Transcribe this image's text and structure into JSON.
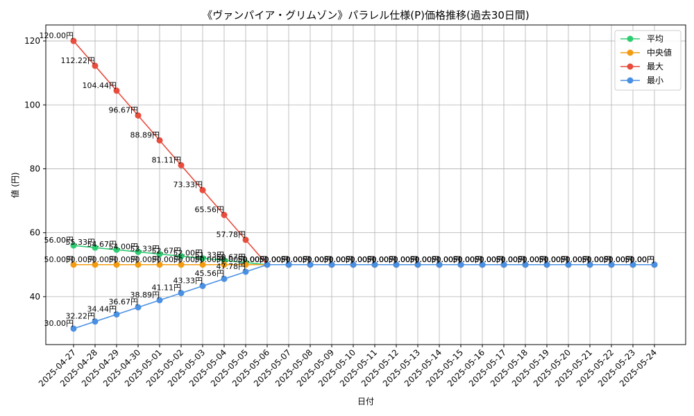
{
  "chart_data": {
    "type": "line",
    "title": "《ヴァンパイア・グリムゾン》パラレル仕様(P)価格推移(過去30日間)",
    "xlabel": "日付",
    "ylabel": "値 (円)",
    "ylim": [
      25,
      125
    ],
    "yticks": [
      40,
      60,
      80,
      100,
      120
    ],
    "grid": true,
    "legend_position": "top-right",
    "label_suffix": "円",
    "categories": [
      "2025-04-27",
      "2025-04-28",
      "2025-04-29",
      "2025-04-30",
      "2025-05-01",
      "2025-05-02",
      "2025-05-03",
      "2025-05-04",
      "2025-05-05",
      "2025-05-06",
      "2025-05-07",
      "2025-05-08",
      "2025-05-09",
      "2025-05-10",
      "2025-05-11",
      "2025-05-12",
      "2025-05-13",
      "2025-05-14",
      "2025-05-15",
      "2025-05-16",
      "2025-05-17",
      "2025-05-18",
      "2025-05-19",
      "2025-05-20",
      "2025-05-21",
      "2025-05-22",
      "2025-05-23",
      "2025-05-24"
    ],
    "series": [
      {
        "name": "平均",
        "color": "#2ecc71",
        "values": [
          56.0,
          55.33,
          54.67,
          54.0,
          53.33,
          52.67,
          52.0,
          51.33,
          50.67,
          50,
          50,
          50,
          50,
          50,
          50,
          50,
          50,
          50,
          50,
          50,
          50,
          50,
          50,
          50,
          50,
          50,
          50,
          50
        ]
      },
      {
        "name": "中央値",
        "color": "#f39c12",
        "values": [
          50,
          50,
          50,
          50,
          50,
          50,
          50,
          50,
          50,
          50,
          50,
          50,
          50,
          50,
          50,
          50,
          50,
          50,
          50,
          50,
          50,
          50,
          50,
          50,
          50,
          50,
          50,
          50
        ]
      },
      {
        "name": "最大",
        "color": "#e74c3c",
        "values": [
          120.0,
          112.22,
          104.44,
          96.67,
          88.89,
          81.11,
          73.33,
          65.56,
          57.78,
          50,
          50,
          50,
          50,
          50,
          50,
          50,
          50,
          50,
          50,
          50,
          50,
          50,
          50,
          50,
          50,
          50,
          50,
          50
        ]
      },
      {
        "name": "最小",
        "color": "#4a90e2",
        "values": [
          30.0,
          32.22,
          34.44,
          36.67,
          38.89,
          41.11,
          43.33,
          45.56,
          47.78,
          50,
          50,
          50,
          50,
          50,
          50,
          50,
          50,
          50,
          50,
          50,
          50,
          50,
          50,
          50,
          50,
          50,
          50,
          50
        ]
      }
    ]
  }
}
